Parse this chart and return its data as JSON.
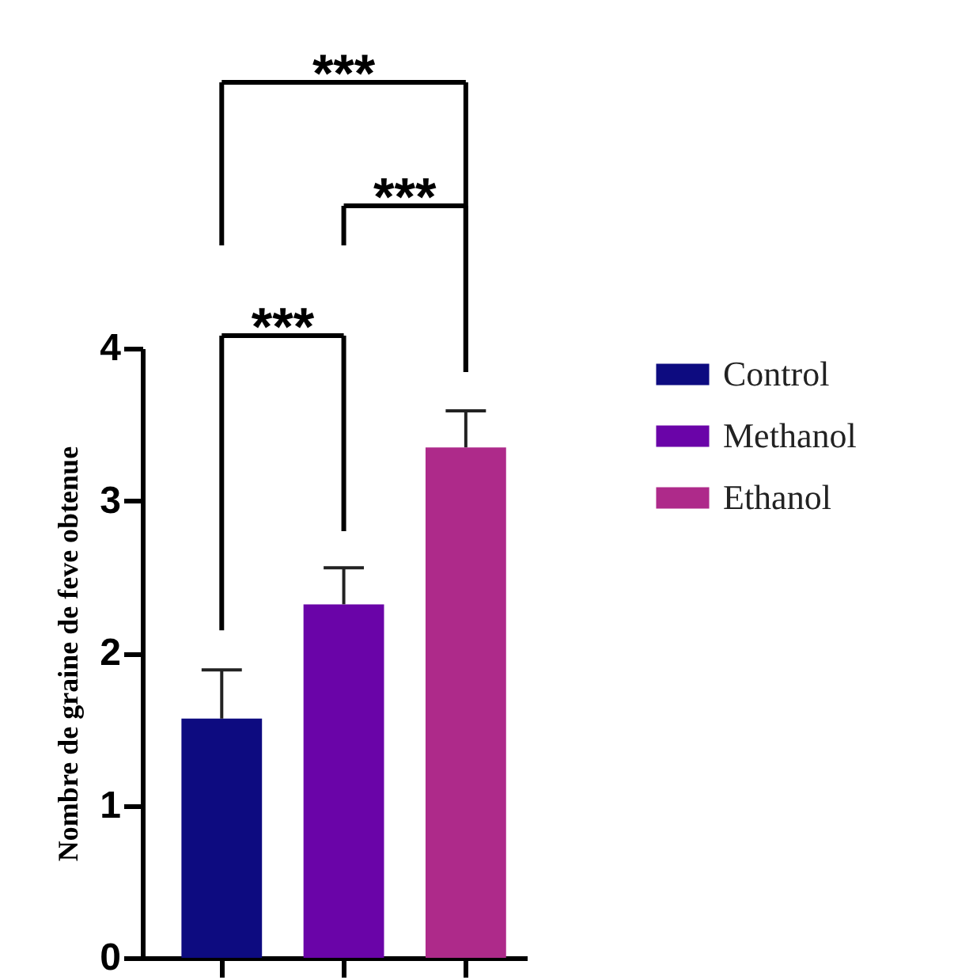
{
  "chart_data": {
    "type": "bar",
    "ylabel": "Nombre de graine de feve obtenue",
    "categories": [
      null
    ],
    "series": [
      {
        "name": "Control",
        "color": "#0d0b80",
        "values": [
          1.57
        ],
        "errors": [
          0.32
        ]
      },
      {
        "name": "Methanol",
        "color": "#6a04a8",
        "values": [
          2.32
        ],
        "errors": [
          0.24
        ]
      },
      {
        "name": "Ethanol",
        "color": "#ae2a8a",
        "values": [
          3.35
        ],
        "errors": [
          0.24
        ]
      }
    ],
    "ylim": [
      0,
      4
    ],
    "yticks": [
      0,
      1,
      2,
      3,
      4
    ],
    "grid": false,
    "legend": "right",
    "annotations": [
      "***",
      "***",
      "***"
    ]
  }
}
